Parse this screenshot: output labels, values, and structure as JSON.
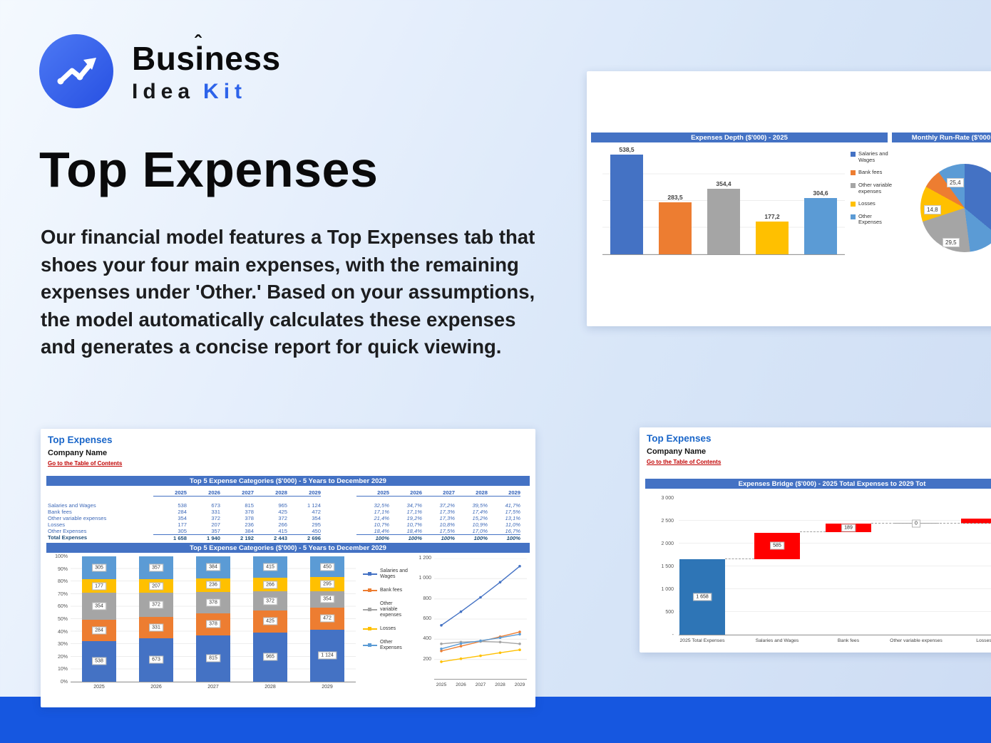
{
  "logo": {
    "name_top": "Business",
    "caret": "ˆ",
    "name_mid": "Idea",
    "name_accent": "Kit"
  },
  "hero": {
    "title": "Top Expenses",
    "paragraph": "Our financial model features a Top Expenses tab that shoes your four main expenses, with the remaining expenses under 'Other.' Based on your assumptions, the model automatically calculates these expenses and generates a concise report for quick viewing."
  },
  "colors": {
    "band": "#1657E0",
    "header_bar": "#4472C4",
    "link": "#C00000",
    "series": [
      "#4472C4",
      "#ED7D31",
      "#A5A5A5",
      "#FFC000",
      "#5B9BD5"
    ],
    "bridge_total": "#2E75B6",
    "bridge_increase": "#FF0000"
  },
  "depth_card": {
    "title": "Expenses Depth ($'000) - 2025",
    "runrate_title": "Monthly Run-Rate ($'000",
    "bar_labels": [
      "538,5",
      "283,5",
      "354,4",
      "177,2",
      "304,6"
    ],
    "bar_values": [
      538.5,
      283.5,
      354.4,
      177.2,
      304.6
    ],
    "legend": [
      "Salaries and Wages",
      "Bank fees",
      "Other variable expenses",
      "Losses",
      "Other Expenses"
    ],
    "pie_labels": [
      "25,4",
      "14,8",
      "29,5"
    ],
    "pie_slices": [
      {
        "color": "#4472C4",
        "pct": 36
      },
      {
        "color": "#5B9BD5",
        "pct": 12
      },
      {
        "color": "#A5A5A5",
        "pct": 22
      },
      {
        "color": "#FFC000",
        "pct": 13
      },
      {
        "color": "#ED7D31",
        "pct": 7
      },
      {
        "color": "#5B9BD5",
        "pct": 10
      }
    ]
  },
  "report_card": {
    "sheet_title": "Top Expenses",
    "company": "Company Name",
    "toc_link": "Go to the Table of Contents",
    "table_title": "Top 5 Expense Categories ($'000) - 5 Years to December 2029",
    "chart_title": "Top 5 Expense Categories ($'000) - 5 Years to December 2029",
    "years": [
      "2025",
      "2026",
      "2027",
      "2028",
      "2029"
    ],
    "rows": [
      {
        "label": "Salaries and Wages",
        "values": [
          "538",
          "673",
          "815",
          "965",
          "1 124"
        ],
        "nums": [
          538,
          673,
          815,
          965,
          1124
        ],
        "pcts": [
          "32,5%",
          "34,7%",
          "37,2%",
          "39,5%",
          "41,7%"
        ]
      },
      {
        "label": "Bank fees",
        "values": [
          "284",
          "331",
          "378",
          "425",
          "472"
        ],
        "nums": [
          284,
          331,
          378,
          425,
          472
        ],
        "pcts": [
          "17,1%",
          "17,1%",
          "17,3%",
          "17,4%",
          "17,5%"
        ]
      },
      {
        "label": "Other variable expenses",
        "values": [
          "354",
          "372",
          "378",
          "372",
          "354"
        ],
        "nums": [
          354,
          372,
          378,
          372,
          354
        ],
        "pcts": [
          "21,4%",
          "19,2%",
          "17,3%",
          "15,2%",
          "13,1%"
        ]
      },
      {
        "label": "Losses",
        "values": [
          "177",
          "207",
          "236",
          "266",
          "295"
        ],
        "nums": [
          177,
          207,
          236,
          266,
          295
        ],
        "pcts": [
          "10,7%",
          "10,7%",
          "10,8%",
          "10,9%",
          "11,0%"
        ]
      },
      {
        "label": "Other Expenses",
        "values": [
          "305",
          "357",
          "384",
          "415",
          "450"
        ],
        "nums": [
          305,
          357,
          384,
          415,
          450
        ],
        "pcts": [
          "18,4%",
          "18,4%",
          "17,5%",
          "17,0%",
          "16,7%"
        ]
      }
    ],
    "total_row": {
      "label": "Total Expenses",
      "values": [
        "1 658",
        "1 940",
        "2 192",
        "2 443",
        "2 696"
      ],
      "pcts": [
        "100%",
        "100%",
        "100%",
        "100%",
        "100%"
      ]
    },
    "stacked_yticks": [
      "100%",
      "90%",
      "80%",
      "70%",
      "60%",
      "50%",
      "40%",
      "30%",
      "20%",
      "10%",
      "0%"
    ],
    "line_yticks": [
      "1 200",
      "1 000",
      "800",
      "600",
      "400",
      "200"
    ],
    "legend": [
      "Salaries and Wages",
      "Bank fees",
      "Other variable expenses",
      "Losses",
      "Other Expenses"
    ]
  },
  "bridge_card": {
    "sheet_title": "Top Expenses",
    "company": "Company Name",
    "toc_link": "Go to the Table of Contents",
    "title": "Expenses Bridge ($'000) - 2025 Total Expenses to 2029 Tot",
    "yticks": [
      "3 000",
      "2 500",
      "2 000",
      "1 500",
      "1 000",
      "500",
      "-"
    ],
    "steps": [
      {
        "label": "2025 Total Expenses",
        "display": "1 658",
        "value": 1658,
        "type": "total"
      },
      {
        "label": "Salaries and Wages",
        "display": "585",
        "value": 585,
        "type": "increase"
      },
      {
        "label": "Bank fees",
        "display": "189",
        "value": 189,
        "type": "increase"
      },
      {
        "label": "Other variable expenses",
        "display": "0",
        "value": 0,
        "type": "increase"
      },
      {
        "label": "Losses",
        "display": "",
        "value": 118,
        "type": "increase"
      }
    ]
  }
}
